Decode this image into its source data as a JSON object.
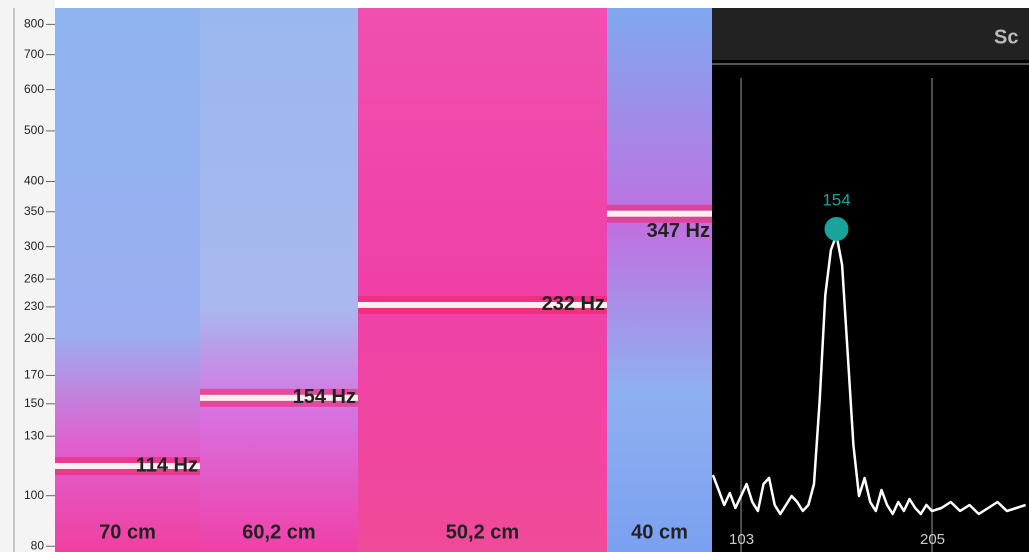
{
  "chart_data": [
    {
      "type": "spectrogram",
      "log_y": true,
      "ylim": [
        78,
        860
      ],
      "yticks": [
        80,
        100,
        130,
        150,
        170,
        200,
        230,
        260,
        300,
        350,
        400,
        500,
        600,
        700,
        800
      ],
      "categories": [
        "70 cm",
        "60,2 cm",
        "50,2 cm",
        "40 cm"
      ],
      "values": [
        114,
        154,
        232,
        347
      ],
      "value_labels": [
        "114 Hz",
        "154 Hz",
        "232 Hz",
        "347 Hz"
      ]
    },
    {
      "type": "line",
      "title": "Sc",
      "color": "#ffffff",
      "xlim": [
        87.5,
        256.8
      ],
      "xticks": [
        103,
        205
      ],
      "ylim": [
        0,
        100
      ],
      "x": [
        88,
        91,
        94,
        97,
        100,
        103,
        106,
        109,
        112,
        115,
        118,
        121,
        124,
        127,
        130,
        133,
        136,
        139,
        142,
        145,
        148,
        151,
        154,
        157,
        160,
        163,
        166,
        169,
        172,
        175,
        178,
        181,
        184,
        187,
        190,
        193,
        196,
        199,
        202,
        205,
        210,
        215,
        220,
        225,
        230,
        235,
        240,
        245,
        250,
        255
      ],
      "values": [
        15,
        10,
        5,
        9,
        4,
        8,
        12,
        6,
        3,
        12,
        14,
        5,
        2,
        5,
        8,
        6,
        3,
        5,
        12,
        40,
        75,
        90,
        95,
        85,
        55,
        25,
        8,
        14,
        6,
        3,
        10,
        5,
        2,
        6,
        3,
        7,
        4,
        2,
        5,
        3,
        4,
        6,
        3,
        5,
        2,
        4,
        6,
        3,
        4,
        5
      ],
      "peak": {
        "x": 154,
        "value": 95,
        "color": "#1aa39a"
      }
    }
  ]
}
